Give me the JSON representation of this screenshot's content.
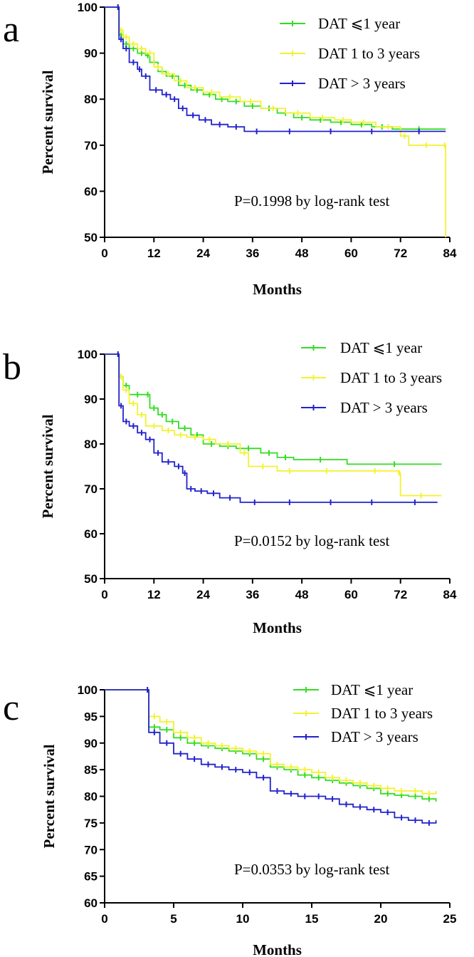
{
  "chart_data": [
    {
      "type": "line",
      "panel_label": "a",
      "xlabel": "Months",
      "ylabel": "Percent survival",
      "xlim": [
        0,
        84
      ],
      "ylim": [
        50,
        100
      ],
      "xticks": [
        0,
        12,
        24,
        36,
        48,
        60,
        72,
        84
      ],
      "yticks": [
        50,
        60,
        70,
        80,
        90,
        100
      ],
      "annotation": "P=0.1998 by log-rank test",
      "legend_position": "top-right",
      "series": [
        {
          "name": "DAT ≤1 year",
          "legend_label": "DAT ⩽1 year",
          "color": "#33dd22",
          "x": [
            0,
            3,
            3.5,
            4.5,
            6,
            8,
            10,
            11,
            13,
            15,
            18,
            21,
            24,
            27,
            30,
            34,
            38,
            42,
            46,
            50,
            55,
            60,
            65,
            70,
            83
          ],
          "y": [
            100,
            100,
            94,
            92,
            91,
            90,
            89.5,
            88,
            86,
            85,
            83,
            82,
            81,
            80,
            79.5,
            78.5,
            78,
            77,
            76,
            75.5,
            75,
            74.5,
            74,
            73.5,
            73.5
          ]
        },
        {
          "name": "DAT 1 to 3 years",
          "legend_label": "DAT 1 to 3 years",
          "color": "#f2f230",
          "x": [
            0,
            3,
            3.5,
            4.5,
            6,
            8,
            10,
            12,
            14,
            17,
            20,
            24,
            28,
            33,
            38,
            44,
            50,
            56,
            60,
            66,
            72,
            74,
            82.5,
            83
          ],
          "y": [
            100,
            100,
            95,
            93.5,
            92,
            91,
            90,
            87,
            85.5,
            84,
            82.5,
            81.5,
            80.5,
            79.5,
            78,
            77,
            76,
            75.5,
            75,
            74,
            72,
            70,
            70,
            50
          ]
        },
        {
          "name": "DAT > 3 years",
          "legend_label": "DAT > 3 years",
          "color": "#2222cc",
          "x": [
            0,
            3,
            3.5,
            4.5,
            6,
            8,
            9,
            11,
            14,
            16,
            18,
            20,
            23,
            26,
            30,
            34,
            40,
            50,
            60,
            70,
            83
          ],
          "y": [
            100,
            100,
            93,
            91,
            88,
            86.5,
            85,
            82,
            81,
            80,
            78,
            76.5,
            75.5,
            74.5,
            74,
            73,
            73,
            73,
            73,
            73,
            73
          ]
        }
      ]
    },
    {
      "type": "line",
      "panel_label": "b",
      "xlabel": "Months",
      "ylabel": "Percent survival",
      "xlim": [
        0,
        84
      ],
      "ylim": [
        50,
        100
      ],
      "xticks": [
        0,
        12,
        24,
        36,
        48,
        60,
        72,
        84
      ],
      "yticks": [
        50,
        60,
        70,
        80,
        90,
        100
      ],
      "annotation": "P=0.0152 by log-rank test",
      "legend_position": "top-right",
      "series": [
        {
          "name": "DAT ≤1 year",
          "legend_label": "DAT ⩽1 year",
          "color": "#33dd22",
          "x": [
            0,
            3,
            3.5,
            4.5,
            6,
            10,
            11,
            13,
            15,
            18,
            21,
            24,
            28,
            32,
            38,
            42,
            46,
            59,
            82
          ],
          "y": [
            100,
            100,
            95,
            93,
            91,
            91,
            88,
            86.5,
            85,
            83.5,
            82,
            80,
            79.5,
            79,
            78,
            77,
            76.5,
            75.5,
            75.5
          ]
        },
        {
          "name": "DAT 1 to 3 years",
          "legend_label": "DAT 1 to 3 years",
          "color": "#f2f230",
          "x": [
            0,
            3,
            3.5,
            4.5,
            6,
            8,
            10,
            14,
            17,
            20,
            24,
            27,
            33,
            35,
            42,
            48,
            60,
            71.5,
            72,
            82
          ],
          "y": [
            100,
            100,
            95,
            92,
            89,
            86.5,
            84,
            83,
            82,
            81.5,
            81,
            80,
            78,
            75,
            74,
            74,
            74,
            73.5,
            68.5,
            68.5
          ]
        },
        {
          "name": "DAT > 3 years",
          "legend_label": "DAT > 3 years",
          "color": "#2222cc",
          "x": [
            0,
            3,
            3.5,
            4.5,
            6,
            8,
            10,
            12,
            14,
            17,
            19,
            20,
            22,
            25,
            28,
            33,
            40,
            50,
            60,
            70,
            81
          ],
          "y": [
            100,
            100,
            88.5,
            85,
            84,
            82.5,
            81,
            78,
            76,
            75,
            73.5,
            70,
            69.5,
            69,
            68,
            67,
            67,
            67,
            67,
            67,
            67
          ]
        }
      ]
    },
    {
      "type": "line",
      "panel_label": "c",
      "xlabel": "Months",
      "ylabel": "Percent survival",
      "xlim": [
        0,
        25
      ],
      "ylim": [
        60,
        100
      ],
      "xticks": [
        0,
        5,
        10,
        15,
        20,
        25
      ],
      "yticks": [
        60,
        65,
        70,
        75,
        80,
        85,
        90,
        95,
        100
      ],
      "annotation": "P=0.0353 by log-rank test",
      "legend_position": "top-right",
      "series": [
        {
          "name": "DAT ≤1 year",
          "legend_label": "DAT ⩽1 year",
          "color": "#33dd22",
          "x": [
            0,
            3,
            3.2,
            4,
            5,
            6,
            7,
            8,
            9,
            10,
            11,
            12,
            13,
            14,
            15,
            16,
            17,
            18,
            19,
            20,
            21,
            22,
            23,
            24
          ],
          "y": [
            100,
            100,
            93,
            92.5,
            91,
            90,
            89.5,
            89,
            88.5,
            88,
            87,
            85.5,
            85,
            84,
            83.5,
            83,
            82.5,
            82,
            81.5,
            80.5,
            80.2,
            80,
            79.5,
            79
          ]
        },
        {
          "name": "DAT 1 to 3 years",
          "legend_label": "DAT 1 to 3 years",
          "color": "#f2f230",
          "x": [
            0,
            3,
            3.2,
            4,
            5,
            6,
            7,
            8,
            9,
            10,
            11,
            12,
            13,
            14,
            15,
            16,
            17,
            18,
            19,
            20,
            21,
            22,
            23,
            24
          ],
          "y": [
            100,
            100,
            95,
            94,
            92,
            91,
            90,
            89.5,
            89,
            88.5,
            88,
            86,
            85.5,
            85,
            84.5,
            83.5,
            83,
            82.5,
            82,
            81.5,
            81,
            81,
            80.5,
            81
          ]
        },
        {
          "name": "DAT > 3 years",
          "legend_label": "DAT > 3 years",
          "color": "#2222cc",
          "x": [
            0,
            3,
            3.2,
            4,
            5,
            6,
            7,
            8,
            9,
            10,
            11,
            12,
            13,
            14,
            15,
            16,
            17,
            18,
            19,
            20,
            21,
            22,
            23,
            24
          ],
          "y": [
            100,
            100,
            92,
            90,
            88,
            87,
            86,
            85.5,
            85,
            84.5,
            83.5,
            81,
            80.5,
            80,
            80,
            79.5,
            78.5,
            78,
            77.5,
            77,
            76,
            75.5,
            75,
            75.5
          ]
        }
      ]
    }
  ]
}
